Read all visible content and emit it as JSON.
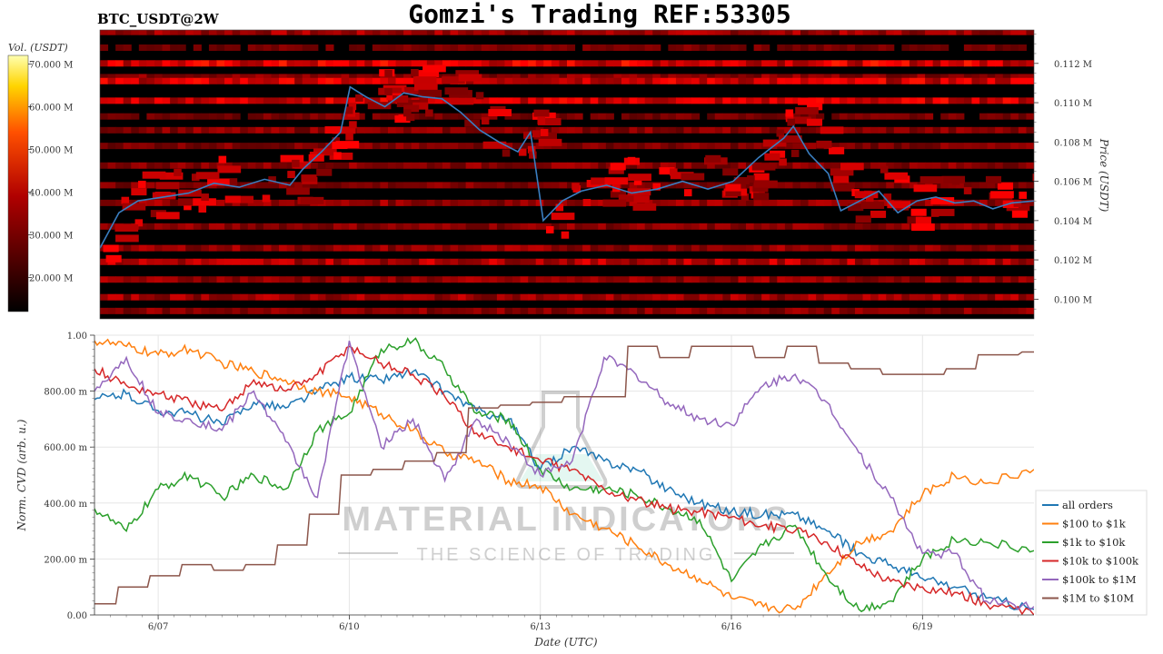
{
  "header": {
    "symbol": "BTC_USDT@2W",
    "title": "Gomzi's Trading REF:53305"
  },
  "watermark": {
    "brand": "MATERIAL INDICATORS",
    "tagline": "THE SCIENCE OF TRADING"
  },
  "colors": {
    "price_line": "#3a7ec0",
    "all_orders": "#1f77b4",
    "usd100_1k": "#ff7f0e",
    "usd1k_10k": "#2ca02c",
    "usd10k_100k": "#d62728",
    "usd100k_1m": "#9467bd",
    "usd1m_10m": "#8c564b",
    "heatmap_low": "#000000",
    "heatmap_mid": "#cc0000",
    "heatmap_high": "#ffff80"
  },
  "chart_data": [
    {
      "type": "heatmap",
      "name": "order-book-heatmap",
      "colorbar": {
        "label": "Vol. (USDT)",
        "ticks": [
          "70.000 M",
          "60.000 M",
          "50.000 M",
          "40.000 M",
          "30.000 M",
          "20.000 M"
        ],
        "tick_values": [
          70,
          60,
          50,
          40,
          30,
          20
        ],
        "range": [
          12,
          72
        ]
      },
      "y_axis": {
        "label": "Price (USDT)",
        "ticks": [
          "0.112 M",
          "0.110 M",
          "0.108 M",
          "0.106 M",
          "0.104 M",
          "0.102 M",
          "0.100 M"
        ],
        "tick_values": [
          0.112,
          0.11,
          0.108,
          0.106,
          0.104,
          0.102,
          0.1
        ],
        "range": [
          0.099,
          0.1137
        ]
      },
      "x_range": [
        6.0,
        20.75
      ],
      "bands": [
        {
          "price": 0.1136,
          "intensity": 0.55
        },
        {
          "price": 0.1128,
          "intensity": 0.35
        },
        {
          "price": 0.112,
          "intensity": 0.85
        },
        {
          "price": 0.1113,
          "intensity": 0.45
        },
        {
          "price": 0.1111,
          "intensity": 0.8
        },
        {
          "price": 0.1101,
          "intensity": 0.8
        },
        {
          "price": 0.1093,
          "intensity": 0.35
        },
        {
          "price": 0.1086,
          "intensity": 0.45
        },
        {
          "price": 0.1078,
          "intensity": 0.4
        },
        {
          "price": 0.1068,
          "intensity": 0.45
        },
        {
          "price": 0.1058,
          "intensity": 0.4
        },
        {
          "price": 0.1049,
          "intensity": 0.5
        },
        {
          "price": 0.1037,
          "intensity": 0.45
        },
        {
          "price": 0.1026,
          "intensity": 0.5
        },
        {
          "price": 0.1019,
          "intensity": 0.65
        },
        {
          "price": 0.101,
          "intensity": 0.5
        },
        {
          "price": 0.1001,
          "intensity": 0.55
        },
        {
          "price": 0.0994,
          "intensity": 0.45
        }
      ],
      "price_series": {
        "name": "price",
        "x": [
          6.0,
          6.3,
          6.6,
          7.0,
          7.4,
          7.8,
          8.2,
          8.6,
          9.0,
          9.2,
          9.5,
          9.8,
          9.95,
          10.2,
          10.5,
          10.8,
          11.1,
          11.4,
          11.7,
          12.0,
          12.3,
          12.6,
          12.8,
          13.0,
          13.3,
          13.6,
          14.0,
          14.4,
          14.8,
          15.2,
          15.6,
          16.0,
          16.4,
          16.8,
          16.95,
          17.2,
          17.5,
          17.7,
          18.0,
          18.3,
          18.6,
          18.9,
          19.2,
          19.5,
          19.8,
          20.1,
          20.4,
          20.75
        ],
        "y": [
          0.1026,
          0.1044,
          0.105,
          0.1052,
          0.1054,
          0.1059,
          0.1057,
          0.1061,
          0.1058,
          0.1066,
          0.1075,
          0.1085,
          0.1108,
          0.1103,
          0.1098,
          0.1105,
          0.1103,
          0.1102,
          0.1095,
          0.1086,
          0.108,
          0.1075,
          0.1085,
          0.104,
          0.105,
          0.1055,
          0.1058,
          0.1054,
          0.1056,
          0.106,
          0.1056,
          0.106,
          0.1072,
          0.1082,
          0.1088,
          0.1074,
          0.1064,
          0.1045,
          0.105,
          0.1055,
          0.1044,
          0.105,
          0.1052,
          0.1049,
          0.105,
          0.1046,
          0.1049,
          0.105
        ]
      }
    },
    {
      "type": "line",
      "name": "normalized-cvd",
      "xlabel": "Date (UTC)",
      "ylabel": "Norm. CVD (arb. u.)",
      "x_ticks": [
        "6/07",
        "6/10",
        "6/13",
        "6/16",
        "6/19"
      ],
      "x_tick_values": [
        7,
        10,
        13,
        16,
        19
      ],
      "x_range": [
        6.0,
        20.75
      ],
      "y_ticks": [
        "0.00",
        "200.00 m",
        "400.00 m",
        "600.00 m",
        "800.00 m",
        "1.00"
      ],
      "y_tick_values": [
        0,
        0.2,
        0.4,
        0.6,
        0.8,
        1.0
      ],
      "ylim": [
        0,
        1
      ],
      "grid": true,
      "legend_position": "bottom-right",
      "x": [
        6.0,
        6.5,
        7.0,
        7.5,
        8.0,
        8.5,
        9.0,
        9.5,
        10.0,
        10.5,
        11.0,
        11.5,
        12.0,
        12.5,
        13.0,
        13.5,
        14.0,
        14.5,
        15.0,
        15.5,
        16.0,
        16.5,
        17.0,
        17.5,
        18.0,
        18.5,
        19.0,
        19.5,
        20.0,
        20.75
      ],
      "series": [
        {
          "name": "all orders",
          "color_key": "all_orders",
          "values": [
            0.77,
            0.79,
            0.73,
            0.72,
            0.68,
            0.76,
            0.74,
            0.8,
            0.85,
            0.84,
            0.87,
            0.8,
            0.73,
            0.7,
            0.52,
            0.6,
            0.55,
            0.52,
            0.45,
            0.4,
            0.37,
            0.36,
            0.36,
            0.3,
            0.22,
            0.18,
            0.13,
            0.1,
            0.06,
            0.02
          ]
        },
        {
          "name": "$100 to $1k",
          "color_key": "usd100_1k",
          "values": [
            0.98,
            0.96,
            0.93,
            0.95,
            0.9,
            0.87,
            0.84,
            0.8,
            0.78,
            0.72,
            0.66,
            0.58,
            0.55,
            0.48,
            0.46,
            0.36,
            0.31,
            0.25,
            0.18,
            0.13,
            0.06,
            0.03,
            0.02,
            0.15,
            0.26,
            0.3,
            0.43,
            0.5,
            0.47,
            0.52
          ]
        },
        {
          "name": "$1k to $10k",
          "color_key": "usd1k_10k",
          "values": [
            0.38,
            0.3,
            0.45,
            0.5,
            0.42,
            0.5,
            0.45,
            0.66,
            0.72,
            0.95,
            0.98,
            0.88,
            0.72,
            0.7,
            0.52,
            0.45,
            0.45,
            0.43,
            0.38,
            0.34,
            0.12,
            0.25,
            0.32,
            0.14,
            0.02,
            0.05,
            0.2,
            0.27,
            0.26,
            0.23
          ]
        },
        {
          "name": "$10k to $100k",
          "color_key": "usd10k_100k",
          "values": [
            0.88,
            0.82,
            0.79,
            0.76,
            0.73,
            0.84,
            0.8,
            0.86,
            0.96,
            0.9,
            0.86,
            0.78,
            0.65,
            0.6,
            0.55,
            0.52,
            0.45,
            0.41,
            0.38,
            0.37,
            0.35,
            0.32,
            0.3,
            0.26,
            0.18,
            0.12,
            0.1,
            0.08,
            0.04,
            0.0
          ]
        },
        {
          "name": "$100k to $1M",
          "color_key": "usd100k_1m",
          "values": [
            0.8,
            0.92,
            0.72,
            0.7,
            0.66,
            0.8,
            0.62,
            0.42,
            0.98,
            0.6,
            0.7,
            0.48,
            0.7,
            0.62,
            0.5,
            0.55,
            0.92,
            0.86,
            0.76,
            0.7,
            0.68,
            0.82,
            0.86,
            0.76,
            0.58,
            0.42,
            0.22,
            0.22,
            0.05,
            0.03
          ]
        },
        {
          "name": "$1M to $10M",
          "color_key": "usd1m_10m",
          "values": [
            0.04,
            0.1,
            0.14,
            0.18,
            0.16,
            0.18,
            0.25,
            0.36,
            0.5,
            0.52,
            0.55,
            0.58,
            0.74,
            0.75,
            0.76,
            0.78,
            0.78,
            0.96,
            0.92,
            0.96,
            0.96,
            0.92,
            0.96,
            0.9,
            0.88,
            0.86,
            0.86,
            0.88,
            0.93,
            0.94
          ]
        }
      ]
    }
  ]
}
